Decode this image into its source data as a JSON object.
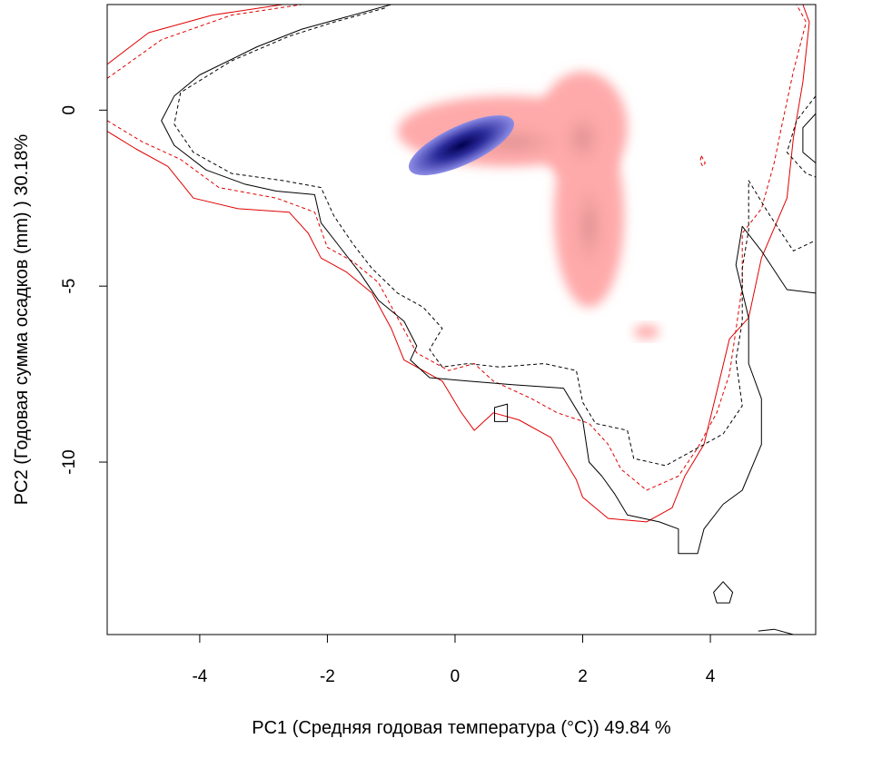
{
  "chart_data": {
    "type": "heatmap",
    "title": "",
    "xlabel": "PC1 (Средняя годовая температура (°C)) 49.84 %",
    "ylabel": "PC2 (Годовая сумма осадков  (mm) ) 30.18%",
    "xlim": [
      -5.45,
      5.65
    ],
    "ylim": [
      -14.9,
      3.0
    ],
    "x_ticks": [
      {
        "value": -4,
        "label": "-4"
      },
      {
        "value": -2,
        "label": "-2"
      },
      {
        "value": 0,
        "label": "0"
      },
      {
        "value": 2,
        "label": "2"
      },
      {
        "value": 4,
        "label": "4"
      }
    ],
    "y_ticks": [
      {
        "value": 0,
        "label": "0"
      },
      {
        "value": -5,
        "label": "-5"
      },
      {
        "value": -10,
        "label": "-10"
      }
    ],
    "grid": false,
    "legend": "none",
    "colors": {
      "density_low": "#ffaaaa",
      "density_mid": "#c88282",
      "overlap_light": "#8c8ce6",
      "overlap_dark": "#000050",
      "contour_red": "#e00000",
      "contour_black": "#000000"
    },
    "density_blobs": [
      {
        "cx": 0.8,
        "cy": -0.6,
        "rx": 1.7,
        "ry": 1.0,
        "weight": 1.0
      },
      {
        "cx": 2.0,
        "cy": -0.5,
        "rx": 0.7,
        "ry": 1.6,
        "weight": 1.0
      },
      {
        "cx": 2.1,
        "cy": -3.0,
        "rx": 0.55,
        "ry": 2.6,
        "weight": 0.9
      },
      {
        "cx": 3.0,
        "cy": -6.3,
        "rx": 0.2,
        "ry": 0.2,
        "weight": 0.6
      }
    ],
    "overlap_blobs": [
      {
        "cx": 0.1,
        "cy": -1.0,
        "rx": 0.9,
        "ry": 0.55,
        "rot": -25
      }
    ],
    "contours": [
      {
        "style": "red-solid",
        "points": [
          [
            -5.45,
            -0.6
          ],
          [
            -5.0,
            -1.1
          ],
          [
            -4.5,
            -1.6
          ],
          [
            -4.1,
            -2.5
          ],
          [
            -3.4,
            -2.8
          ],
          [
            -2.6,
            -2.9
          ],
          [
            -2.3,
            -3.5
          ],
          [
            -2.1,
            -4.2
          ],
          [
            -1.7,
            -4.6
          ],
          [
            -1.3,
            -5.2
          ],
          [
            -1.0,
            -6.2
          ],
          [
            -0.8,
            -7.1
          ],
          [
            -0.2,
            -7.7
          ],
          [
            0.1,
            -8.6
          ],
          [
            0.3,
            -9.1
          ],
          [
            0.6,
            -8.6
          ],
          [
            1.0,
            -8.8
          ],
          [
            1.5,
            -9.3
          ],
          [
            1.7,
            -9.9
          ],
          [
            1.9,
            -10.5
          ],
          [
            2.0,
            -11.0
          ],
          [
            2.4,
            -11.6
          ],
          [
            3.0,
            -11.7
          ],
          [
            3.4,
            -11.3
          ],
          [
            3.6,
            -10.4
          ],
          [
            3.9,
            -9.5
          ],
          [
            4.1,
            -8.0
          ],
          [
            4.3,
            -6.5
          ],
          [
            4.6,
            -5.9
          ],
          [
            4.8,
            -4.2
          ],
          [
            5.2,
            -2.5
          ],
          [
            5.3,
            -0.8
          ],
          [
            5.45,
            0.8
          ],
          [
            5.55,
            2.5
          ],
          [
            5.45,
            3.0
          ]
        ]
      },
      {
        "style": "red-dashed",
        "points": [
          [
            -5.45,
            -0.3
          ],
          [
            -4.9,
            -0.9
          ],
          [
            -4.3,
            -1.4
          ],
          [
            -3.7,
            -2.2
          ],
          [
            -2.8,
            -2.5
          ],
          [
            -2.2,
            -2.9
          ],
          [
            -2.0,
            -3.9
          ],
          [
            -1.6,
            -4.3
          ],
          [
            -1.2,
            -4.9
          ],
          [
            -0.9,
            -5.9
          ],
          [
            -0.6,
            -6.9
          ],
          [
            -0.1,
            -7.4
          ],
          [
            0.3,
            -7.2
          ],
          [
            0.6,
            -7.7
          ],
          [
            1.2,
            -8.2
          ],
          [
            1.6,
            -8.6
          ],
          [
            2.1,
            -8.9
          ],
          [
            2.4,
            -9.5
          ],
          [
            2.6,
            -10.2
          ],
          [
            3.0,
            -10.8
          ],
          [
            3.5,
            -10.4
          ],
          [
            3.8,
            -9.6
          ],
          [
            4.1,
            -8.6
          ],
          [
            4.3,
            -7.5
          ],
          [
            4.5,
            -5.0
          ],
          [
            4.5,
            -3.5
          ],
          [
            4.8,
            -2.8
          ],
          [
            5.0,
            -1.5
          ],
          [
            5.1,
            -0.6
          ],
          [
            5.3,
            1.1
          ],
          [
            5.5,
            2.5
          ],
          [
            5.35,
            3.0
          ]
        ]
      },
      {
        "style": "black-solid",
        "points": [
          [
            -1.0,
            3.0
          ],
          [
            -1.8,
            2.6
          ],
          [
            -2.4,
            2.3
          ],
          [
            -3.1,
            1.8
          ],
          [
            -4.0,
            1.0
          ],
          [
            -4.4,
            0.4
          ],
          [
            -4.6,
            -0.3
          ],
          [
            -4.4,
            -1.0
          ],
          [
            -3.9,
            -1.7
          ],
          [
            -3.3,
            -2.1
          ],
          [
            -2.8,
            -2.3
          ],
          [
            -2.2,
            -2.4
          ],
          [
            -2.1,
            -3.2
          ],
          [
            -1.8,
            -3.9
          ],
          [
            -1.5,
            -4.6
          ],
          [
            -1.2,
            -5.4
          ],
          [
            -0.8,
            -6.0
          ],
          [
            -0.6,
            -6.7
          ],
          [
            -0.7,
            -7.1
          ],
          [
            -0.4,
            -7.6
          ],
          [
            0.2,
            -7.7
          ],
          [
            0.9,
            -7.8
          ],
          [
            1.7,
            -7.9
          ],
          [
            2.0,
            -8.8
          ],
          [
            2.1,
            -10.0
          ],
          [
            2.3,
            -10.4
          ],
          [
            2.5,
            -10.9
          ],
          [
            2.7,
            -11.5
          ],
          [
            3.2,
            -11.7
          ],
          [
            3.5,
            -11.9
          ],
          [
            3.5,
            -12.6
          ],
          [
            3.8,
            -12.6
          ],
          [
            3.9,
            -11.9
          ],
          [
            4.2,
            -11.2
          ],
          [
            4.5,
            -10.8
          ],
          [
            4.8,
            -9.5
          ],
          [
            4.8,
            -8.2
          ],
          [
            4.6,
            -7.2
          ],
          [
            4.6,
            -5.9
          ],
          [
            4.4,
            -4.4
          ],
          [
            4.5,
            -3.3
          ],
          [
            4.8,
            -4.0
          ],
          [
            5.2,
            -5.1
          ],
          [
            5.65,
            -5.2
          ]
        ]
      },
      {
        "style": "black-dashed",
        "points": [
          [
            -1.1,
            2.9
          ],
          [
            -1.9,
            2.5
          ],
          [
            -2.6,
            2.1
          ],
          [
            -3.5,
            1.4
          ],
          [
            -4.3,
            0.5
          ],
          [
            -4.4,
            -0.4
          ],
          [
            -4.1,
            -1.2
          ],
          [
            -3.5,
            -1.8
          ],
          [
            -2.7,
            -2.0
          ],
          [
            -2.1,
            -2.2
          ],
          [
            -1.9,
            -3.0
          ],
          [
            -1.6,
            -3.8
          ],
          [
            -1.3,
            -4.5
          ],
          [
            -0.9,
            -5.2
          ],
          [
            -0.5,
            -5.6
          ],
          [
            -0.2,
            -6.2
          ],
          [
            -0.4,
            -6.8
          ],
          [
            -0.2,
            -7.3
          ],
          [
            0.2,
            -7.2
          ],
          [
            0.7,
            -7.3
          ],
          [
            1.4,
            -7.2
          ],
          [
            1.9,
            -7.4
          ],
          [
            2.0,
            -8.3
          ],
          [
            2.2,
            -8.9
          ],
          [
            2.7,
            -9.1
          ],
          [
            2.8,
            -9.9
          ],
          [
            3.3,
            -10.1
          ],
          [
            3.8,
            -9.6
          ],
          [
            4.2,
            -9.2
          ],
          [
            4.5,
            -8.4
          ],
          [
            4.4,
            -7.1
          ],
          [
            4.5,
            -6.0
          ],
          [
            4.5,
            -4.5
          ],
          [
            4.6,
            -3.4
          ],
          [
            4.6,
            -2.0
          ],
          [
            4.9,
            -2.9
          ],
          [
            5.3,
            -4.0
          ],
          [
            5.65,
            -3.7
          ]
        ]
      }
    ],
    "closed_contours": [
      {
        "style": "black-solid",
        "points": [
          [
            0.62,
            -8.45
          ],
          [
            0.82,
            -8.35
          ],
          [
            0.82,
            -8.85
          ],
          [
            0.62,
            -8.85
          ]
        ]
      },
      {
        "style": "black-solid",
        "points": [
          [
            4.05,
            -13.7
          ],
          [
            4.2,
            -13.4
          ],
          [
            4.35,
            -13.7
          ],
          [
            4.3,
            -14.0
          ],
          [
            4.1,
            -14.0
          ]
        ]
      },
      {
        "style": "red-dashed",
        "points": [
          [
            3.86,
            -1.3
          ],
          [
            3.92,
            -1.5
          ],
          [
            3.88,
            -1.6
          ],
          [
            3.84,
            -1.45
          ]
        ]
      }
    ],
    "edge_contours": [
      {
        "style": "black-solid",
        "points": [
          [
            5.65,
            -0.1
          ],
          [
            5.45,
            -0.5
          ],
          [
            5.45,
            -1.2
          ],
          [
            5.65,
            -1.5
          ]
        ]
      },
      {
        "style": "black-dashed",
        "points": [
          [
            5.65,
            0.4
          ],
          [
            5.35,
            -0.3
          ],
          [
            5.2,
            -1.2
          ],
          [
            5.5,
            -1.8
          ],
          [
            5.65,
            -1.9
          ]
        ]
      },
      {
        "style": "red-solid",
        "points": [
          [
            -5.45,
            1.3
          ],
          [
            -4.8,
            2.2
          ],
          [
            -3.8,
            2.7
          ],
          [
            -2.7,
            3.0
          ]
        ]
      },
      {
        "style": "red-dashed",
        "points": [
          [
            -5.45,
            0.9
          ],
          [
            -4.6,
            2.0
          ],
          [
            -3.5,
            2.7
          ],
          [
            -2.4,
            3.0
          ]
        ]
      },
      {
        "style": "black-solid",
        "points": [
          [
            4.75,
            -14.8
          ],
          [
            5.0,
            -14.75
          ],
          [
            5.3,
            -14.9
          ]
        ]
      }
    ]
  }
}
